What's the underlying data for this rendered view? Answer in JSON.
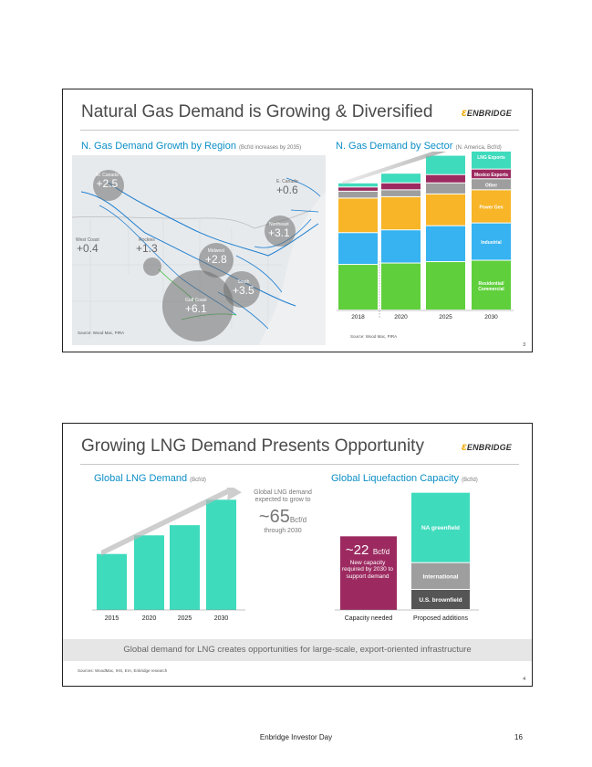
{
  "slide1": {
    "title": "Natural Gas Demand is Growing & Diversified",
    "logo": "ENBRIDGE",
    "map_title": "N. Gas Demand Growth by Region",
    "map_subtitle": "(Bcf/d increases by 2035)",
    "sector_title": "N. Gas Demand by Sector",
    "sector_subtitle": "(N. America, Bcf/d)",
    "regions": [
      {
        "name": "W. Canada",
        "value": "+2.5"
      },
      {
        "name": "E. Canada",
        "value": "+0.6"
      },
      {
        "name": "Northeast",
        "value": "+3.1"
      },
      {
        "name": "West Coast",
        "value": "+0.4"
      },
      {
        "name": "Rockies",
        "value": "+1.3"
      },
      {
        "name": "Midwest",
        "value": "+2.8"
      },
      {
        "name": "South",
        "value": "+3.5"
      },
      {
        "name": "Gulf Coast",
        "value": "+6.1"
      }
    ],
    "map_source": "Source: Wood Mac, PIRA",
    "sector_source": "Source: Wood Mac, PIRA",
    "page_number": "3",
    "sector_labels": [
      "LNG Exports",
      "Mexico Exports",
      "Other",
      "Power Gen",
      "Industrial",
      "Residential/ Commercial"
    ]
  },
  "slide2": {
    "title": "Growing LNG Demand Presents Opportunity",
    "logo": "ENBRIDGE",
    "demand_title": "Global LNG Demand",
    "demand_subtitle": "(Bcf/d)",
    "callout_top": "Global LNG demand expected to grow to",
    "callout_prefix": "~65",
    "callout_unit": "Bcf/d",
    "callout_bottom": "through 2030",
    "capacity_title": "Global Liquefaction Capacity",
    "capacity_subtitle": "(Bcf/d)",
    "need_value": "~22",
    "need_unit": "Bcf/d",
    "need_text": "New capacity required by 2030 to support demand",
    "banner": "Global demand for LNG creates opportunities for large-scale, export-oriented infrastructure",
    "sources": "Sources: WoodMac, IHS, EIA, Enbridge research",
    "page_number": "4"
  },
  "footer": {
    "text": "Enbridge Investor Day",
    "page": "16"
  },
  "chart_data": [
    {
      "type": "bar",
      "title": "N. Gas Demand by Sector (N. America, Bcf/d)",
      "stacked": true,
      "categories": [
        "2018",
        "2020",
        "2025",
        "2030"
      ],
      "ylim": [
        0,
        115
      ],
      "series": [
        {
          "name": "Residential/ Commercial",
          "color": "#5fcf3c",
          "values": [
            33,
            34,
            35,
            36
          ]
        },
        {
          "name": "Industrial",
          "color": "#36b3f0",
          "values": [
            23,
            24,
            26,
            27
          ]
        },
        {
          "name": "Power Gen",
          "color": "#f7b527",
          "values": [
            25,
            24,
            23,
            24
          ]
        },
        {
          "name": "Other",
          "color": "#9e9e9e",
          "values": [
            5,
            5,
            8,
            8
          ]
        },
        {
          "name": "Mexico Exports",
          "color": "#9c2a60",
          "values": [
            3,
            5,
            6,
            7
          ]
        },
        {
          "name": "LNG Exports",
          "color": "#3fdbbd",
          "values": [
            3,
            7,
            14,
            18
          ]
        }
      ]
    },
    {
      "type": "bar",
      "title": "Global LNG Demand (Bcf/d)",
      "categories": [
        "2015",
        "2020",
        "2025",
        "2030"
      ],
      "values": [
        33,
        44,
        50,
        65
      ],
      "ylim": [
        0,
        70
      ]
    },
    {
      "type": "bar",
      "title": "Global Liquefaction Capacity (Bcf/d)",
      "stacked": true,
      "categories": [
        "Capacity needed",
        "Proposed additions"
      ],
      "series": [
        {
          "name": "Capacity needed",
          "color": "#9c2a60",
          "values": [
            22,
            0
          ]
        },
        {
          "name": "U.S. brownfield",
          "color": "#555555",
          "values": [
            0,
            6
          ]
        },
        {
          "name": "International",
          "color": "#9e9e9e",
          "values": [
            0,
            8
          ]
        },
        {
          "name": "NA greenfield",
          "color": "#3fdbbd",
          "values": [
            0,
            21
          ]
        }
      ],
      "ylim": [
        0,
        36
      ]
    }
  ]
}
